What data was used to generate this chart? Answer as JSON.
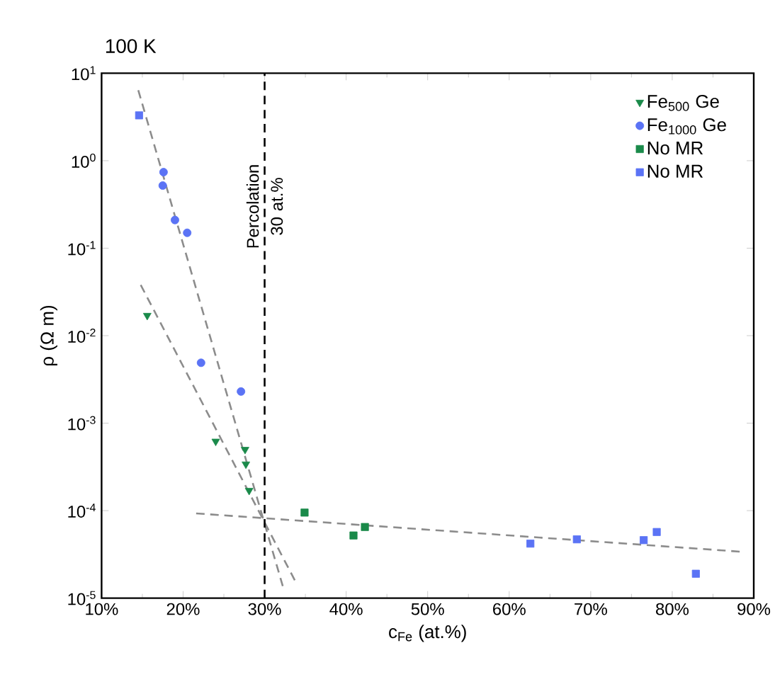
{
  "chart_data": {
    "type": "scatter",
    "annotations": [
      "100 K"
    ],
    "xlabel": "c$_{Fe}$ (at.%)",
    "ylabel": "ρ (Ω m)",
    "log": "y",
    "xlim": [
      10,
      90
    ],
    "ylim": [
      1e-05,
      10
    ],
    "xticks": [
      {
        "value": 10,
        "label": "10%"
      },
      {
        "value": 20,
        "label": "20%"
      },
      {
        "value": 30,
        "label": "30%"
      },
      {
        "value": 40,
        "label": "40%"
      },
      {
        "value": 50,
        "label": "50%"
      },
      {
        "value": 60,
        "label": "60%"
      },
      {
        "value": 70,
        "label": "70%"
      },
      {
        "value": 80,
        "label": "80%"
      },
      {
        "value": 90,
        "label": "90%"
      }
    ],
    "yticks": [
      {
        "value": 1e-05,
        "label": "10$^{-5}$"
      },
      {
        "value": 0.0001,
        "label": "10$^{-4}$"
      },
      {
        "value": 0.001,
        "label": "10$^{-3}$"
      },
      {
        "value": 0.01,
        "label": "10$^{-2}$"
      },
      {
        "value": 0.1,
        "label": "10$^{-1}$"
      },
      {
        "value": 1,
        "label": "10$^{0}$"
      },
      {
        "value": 10,
        "label": "10$^{1}$"
      }
    ],
    "legend": "top right",
    "ref_lines": [
      {
        "axis": "x",
        "value": 30,
        "label": "Percolation 30 at.%",
        "color": "#000000",
        "line_style": "dashed"
      }
    ],
    "series": [
      {
        "name": "Fe$_{500}$ Ge",
        "color": "#1a8a4a",
        "marker": "triangle",
        "x": [
          15.6,
          24.0,
          27.6,
          27.7,
          28.1
        ],
        "values": [
          0.017,
          0.00062,
          0.0005,
          0.00034,
          0.00017
        ]
      },
      {
        "name": "Fe$_{1000}$ Ge",
        "color": "#5b73f5",
        "marker": "circle",
        "x": [
          17.6,
          17.5,
          19.0,
          20.5,
          22.2,
          27.1
        ],
        "values": [
          0.74,
          0.52,
          0.21,
          0.15,
          0.0049,
          0.0023
        ]
      },
      {
        "name": "No MR",
        "color": "#1a8a4a",
        "marker": "square",
        "x": [
          34.9,
          40.9,
          42.3
        ],
        "values": [
          9.5e-05,
          5.2e-05,
          6.5e-05
        ]
      },
      {
        "name": "No MR",
        "color": "#5b73f5",
        "marker": "square",
        "x": [
          14.6,
          62.6,
          68.3,
          76.5,
          78.1,
          82.9
        ],
        "values": [
          3.3,
          4.2e-05,
          4.7e-05,
          4.6e-05,
          5.7e-05,
          1.9e-05
        ]
      },
      {
        "type": "line",
        "color": "#8c8c8c",
        "line_style": "dashed",
        "marker": "none",
        "x": [
          14.5,
          32.3
        ],
        "values": [
          6.4,
          1.3e-05
        ]
      },
      {
        "type": "line",
        "color": "#8c8c8c",
        "line_style": "dashed",
        "marker": "none",
        "x": [
          14.8,
          33.7
        ],
        "values": [
          0.038,
          1.6e-05
        ]
      },
      {
        "type": "line",
        "color": "#8c8c8c",
        "line_style": "dashed",
        "marker": "none",
        "x": [
          21.6,
          88.3
        ],
        "values": [
          9.3e-05,
          3.4e-05
        ]
      }
    ]
  }
}
